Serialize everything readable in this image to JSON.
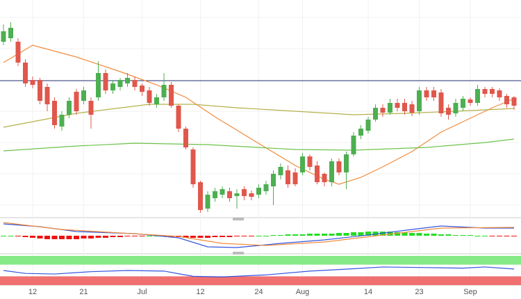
{
  "chart_data": [
    {
      "type": "candlestick",
      "categories": [
        null,
        null,
        null,
        null,
        "12",
        null,
        null,
        null,
        null,
        null,
        null,
        "21",
        null,
        null,
        null,
        null,
        null,
        null,
        null,
        "Jul",
        null,
        null,
        null,
        null,
        null,
        null,
        null,
        "12",
        null,
        null,
        null,
        null,
        null,
        null,
        null,
        "24",
        null,
        null,
        null,
        null,
        null,
        "Aug",
        null,
        null,
        null,
        null,
        null,
        null,
        null,
        null,
        "14",
        null,
        null,
        null,
        null,
        null,
        null,
        "23",
        null,
        null,
        null,
        null,
        null,
        null,
        "Sep",
        null,
        null,
        null,
        null,
        null,
        null
      ],
      "open": [
        250,
        255,
        250,
        220,
        195,
        195,
        185,
        165,
        128,
        145,
        178,
        165,
        165,
        170,
        205,
        180,
        185,
        190,
        195,
        187,
        180,
        160,
        170,
        188,
        158,
        125,
        95,
        48,
        10,
        25,
        30,
        35,
        28,
        38,
        32,
        30,
        35,
        42,
        58,
        65,
        62,
        62,
        85,
        72,
        60,
        48,
        78,
        62,
        88,
        115,
        122,
        138,
        155,
        148,
        162,
        162,
        160,
        150,
        180,
        180,
        177,
        155,
        147,
        155,
        167,
        162,
        182,
        182,
        180,
        172,
        170
      ],
      "high": [
        275,
        278,
        255,
        225,
        200,
        198,
        190,
        170,
        150,
        170,
        182,
        185,
        170,
        222,
        210,
        195,
        198,
        205,
        200,
        190,
        185,
        175,
        205,
        192,
        160,
        128,
        98,
        50,
        35,
        40,
        42,
        40,
        38,
        42,
        36,
        45,
        50,
        65,
        75,
        72,
        68,
        90,
        88,
        78,
        62,
        82,
        82,
        92,
        120,
        130,
        142,
        160,
        160,
        168,
        168,
        168,
        165,
        185,
        185,
        185,
        182,
        160,
        168,
        172,
        170,
        188,
        185,
        185,
        183,
        175,
        172
      ],
      "low": [
        245,
        250,
        215,
        185,
        183,
        160,
        150,
        125,
        122,
        140,
        145,
        160,
        125,
        165,
        175,
        175,
        180,
        185,
        180,
        172,
        158,
        155,
        165,
        155,
        120,
        95,
        40,
        4,
        5,
        20,
        25,
        20,
        10,
        22,
        22,
        25,
        30,
        15,
        52,
        40,
        42,
        58,
        65,
        45,
        42,
        42,
        58,
        38,
        85,
        110,
        118,
        135,
        142,
        145,
        150,
        145,
        143,
        145,
        165,
        165,
        142,
        138,
        142,
        150,
        158,
        158,
        170,
        170,
        165,
        155,
        152
      ],
      "close": [
        265,
        270,
        220,
        190,
        188,
        165,
        160,
        130,
        145,
        165,
        150,
        180,
        145,
        205,
        180,
        190,
        195,
        198,
        185,
        178,
        162,
        170,
        188,
        158,
        125,
        98,
        45,
        8,
        30,
        35,
        38,
        25,
        32,
        28,
        27,
        40,
        45,
        60,
        70,
        45,
        45,
        85,
        70,
        48,
        48,
        78,
        62,
        88,
        115,
        125,
        138,
        155,
        148,
        162,
        155,
        150,
        148,
        180,
        170,
        170,
        147,
        145,
        162,
        168,
        162,
        182,
        175,
        175,
        170,
        160,
        158
      ],
      "ylim": [
        0,
        310
      ],
      "up_color": "#4caf50",
      "down_color": "#e0574c",
      "hline": {
        "value": 194,
        "color": "#1f2d6e"
      },
      "overlays": [
        {
          "color": "#f08a3c",
          "x": [
            0,
            4,
            10,
            16,
            21,
            25,
            29,
            34,
            40,
            44,
            46,
            49,
            52,
            56,
            60,
            64,
            67,
            70
          ],
          "values": [
            220,
            245,
            228,
            207,
            188,
            170,
            142,
            110,
            72,
            52,
            45,
            55,
            70,
            92,
            120,
            140,
            155,
            168
          ]
        },
        {
          "color": "#b5b04a",
          "x": [
            0,
            10,
            20,
            26,
            32,
            40,
            48,
            55,
            62,
            70
          ],
          "values": [
            127,
            147,
            160,
            160,
            155,
            150,
            145,
            147,
            150,
            154
          ]
        },
        {
          "color": "#6cc24a",
          "x": [
            0,
            10,
            18,
            28,
            40,
            48,
            58,
            66,
            70
          ],
          "values": [
            93,
            100,
            104,
            102,
            95,
            94,
            98,
            105,
            110
          ]
        }
      ]
    },
    {
      "type": "macd",
      "ylim": [
        -21,
        21
      ],
      "histogram": [
        0,
        0,
        -1,
        -2,
        -3,
        -4,
        -5,
        -5,
        -5,
        -5,
        -5,
        -4,
        -4,
        -3,
        -3,
        -2,
        -2,
        -1,
        -1,
        -1,
        0,
        0,
        -1,
        -2,
        -2,
        -3,
        -3,
        -3,
        -3,
        -2,
        -2,
        -2,
        -1,
        -1,
        -1,
        0,
        0,
        1,
        1,
        2,
        2,
        2,
        3,
        3,
        3,
        3,
        4,
        4,
        5,
        5,
        6,
        6,
        6,
        6,
        5,
        5,
        4,
        4,
        3,
        3,
        2,
        2,
        1,
        1,
        1,
        0,
        0,
        -1,
        -1,
        -1,
        -1
      ],
      "up_color": "#22dd22",
      "down_color": "#ee1111",
      "series": [
        {
          "color": "#3355dd",
          "x": [
            0,
            5,
            10,
            18,
            24,
            28,
            32,
            38,
            44,
            50,
            56,
            60,
            66,
            70
          ],
          "values": [
            17,
            13,
            6,
            3,
            -3,
            -16,
            -17,
            -11,
            -6,
            1,
            9,
            14,
            11,
            11
          ]
        },
        {
          "color": "#f08a3c",
          "x": [
            0,
            8,
            16,
            24,
            30,
            36,
            44,
            52,
            60,
            70
          ],
          "values": [
            19,
            9,
            4,
            -1,
            -11,
            -14,
            -9,
            1,
            11,
            12
          ]
        }
      ]
    },
    {
      "type": "rsi",
      "ylim": [
        0,
        100
      ],
      "bands": [
        {
          "from": 70,
          "to": 100,
          "color": "#86ea86"
        },
        {
          "from": 0,
          "to": 30,
          "color": "#f07070"
        }
      ],
      "series": [
        {
          "color": "#3355dd",
          "x": [
            0,
            3,
            7,
            12,
            17,
            22,
            26,
            30,
            36,
            42,
            48,
            52,
            58,
            63,
            66,
            70
          ],
          "values": [
            50,
            40,
            38,
            46,
            50,
            48,
            30,
            28,
            35,
            48,
            56,
            62,
            60,
            58,
            62,
            55
          ]
        }
      ]
    }
  ]
}
